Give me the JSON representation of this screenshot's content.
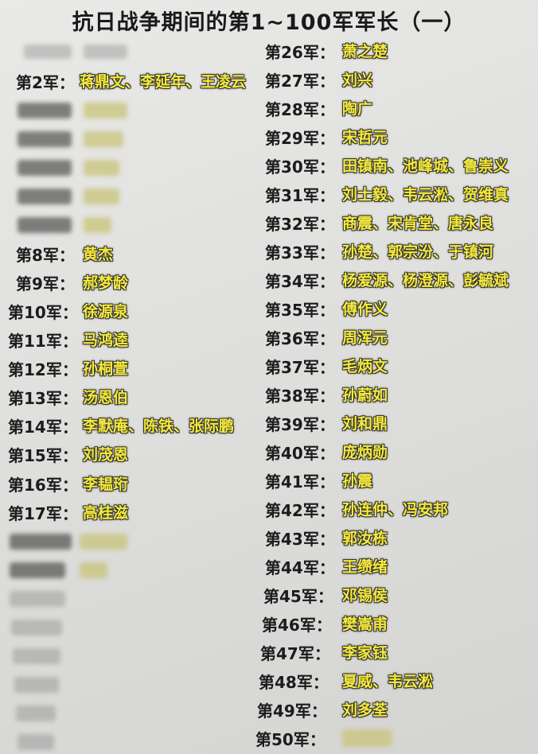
{
  "title": "抗日战争期间的第1~100军军长（一）",
  "left": [
    {
      "army": "第2军：",
      "names": "蒋鼎文、李延年、王凌云"
    },
    {
      "army": "第8军：",
      "names": "黄杰"
    },
    {
      "army": "第9军：",
      "names": "郝梦龄"
    },
    {
      "army": "第10军：",
      "names": "徐源泉"
    },
    {
      "army": "第11军：",
      "names": "马鸿逵"
    },
    {
      "army": "第12军：",
      "names": "孙桐萱"
    },
    {
      "army": "第13军：",
      "names": "汤恩伯"
    },
    {
      "army": "第14军：",
      "names": "李默庵、陈铁、张际鹏"
    },
    {
      "army": "第15军：",
      "names": "刘茂恩"
    },
    {
      "army": "第16军：",
      "names": "李韫珩"
    },
    {
      "army": "第17军：",
      "names": "高桂滋"
    }
  ],
  "right": [
    {
      "army": "第26军：",
      "names": "萧之楚"
    },
    {
      "army": "第27军：",
      "names": "刘兴"
    },
    {
      "army": "第28军：",
      "names": "陶广"
    },
    {
      "army": "第29军：",
      "names": "宋哲元"
    },
    {
      "army": "第30军：",
      "names": "田镇南、池峰城、鲁崇义"
    },
    {
      "army": "第31军：",
      "names": "刘士毅、韦云淞、贺维真"
    },
    {
      "army": "第32军：",
      "names": "商震、宋肯堂、唐永良"
    },
    {
      "army": "第33军：",
      "names": "孙楚、郭宗汾、于镇河"
    },
    {
      "army": "第34军：",
      "names": "杨爱源、杨澄源、彭毓斌"
    },
    {
      "army": "第35军：",
      "names": "傅作义"
    },
    {
      "army": "第36军：",
      "names": "周浑元"
    },
    {
      "army": "第37军：",
      "names": "毛炳文"
    },
    {
      "army": "第38军：",
      "names": "孙蔚如"
    },
    {
      "army": "第39军：",
      "names": "刘和鼎"
    },
    {
      "army": "第40军：",
      "names": "庞炳勋"
    },
    {
      "army": "第41军：",
      "names": "孙震"
    },
    {
      "army": "第42军：",
      "names": "孙连仲、冯安邦"
    },
    {
      "army": "第43军：",
      "names": "郭汝栋"
    },
    {
      "army": "第44军：",
      "names": "王缵绪"
    },
    {
      "army": "第45军：",
      "names": "邓锡侯"
    },
    {
      "army": "第46军：",
      "names": "樊嵩甫"
    },
    {
      "army": "第47军：",
      "names": "李家钰"
    },
    {
      "army": "第48军：",
      "names": "夏威、韦云淞"
    },
    {
      "army": "第49军：",
      "names": "刘多荃"
    },
    {
      "army": "第50军："
    }
  ]
}
